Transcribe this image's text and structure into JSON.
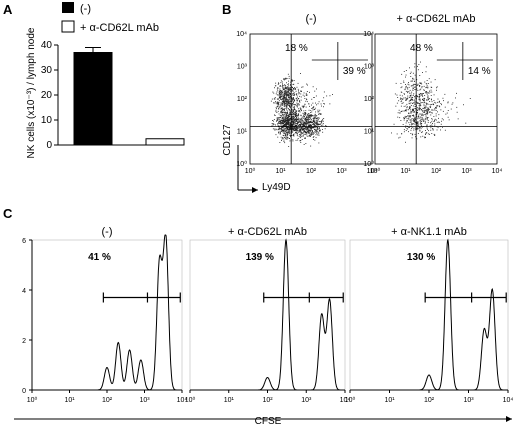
{
  "panels": {
    "A": "A",
    "B": "B",
    "C": "C"
  },
  "chart_data": [
    {
      "panel": "A",
      "type": "bar",
      "legend": [
        "(-)",
        "+ α-CD62L mAb"
      ],
      "legend_placement": "top",
      "ylabel": "NK cells (x10⁻³) / lymph node",
      "ylim": [
        0,
        40
      ],
      "yticks": [
        "0",
        "10",
        "20",
        "30",
        "40"
      ],
      "categories": [
        "(-)",
        "+ α-CD62L mAb"
      ],
      "values": [
        37,
        2.5
      ],
      "error": [
        2,
        0
      ],
      "colors": [
        "#000000",
        "#ffffff"
      ]
    },
    {
      "panel": "B",
      "type": "scatter",
      "xlabel": "Ly49D",
      "ylabel": "CD127",
      "scale": "log",
      "xlim": [
        1,
        10000
      ],
      "ylim": [
        1,
        10000
      ],
      "ticks": [
        "10⁰",
        "10¹",
        "10²",
        "10³",
        "10⁴"
      ],
      "plots": [
        {
          "title": "(-)",
          "quadrants": {
            "upper_left": "18 %",
            "upper_right": "39 %"
          }
        },
        {
          "title": "+ α-CD62L mAb",
          "quadrants": {
            "upper_left": "48 %",
            "upper_right": "14 %"
          }
        }
      ]
    },
    {
      "panel": "C",
      "type": "line",
      "xlabel": "CFSE",
      "scale_x": "log",
      "xlim": [
        1,
        10000
      ],
      "ylim": [
        0,
        6
      ],
      "yticks": [
        "0",
        "2",
        "4",
        "6"
      ],
      "xticks": [
        "10⁰",
        "10¹",
        "10²",
        "10³",
        "10⁴"
      ],
      "plots": [
        {
          "title": "(-)",
          "gate_label": "41 %",
          "gate": [
            80,
            9000
          ],
          "gate_split": 1200,
          "peaks": [
            {
              "x": 100,
              "h": 0.9
            },
            {
              "x": 200,
              "h": 1.9
            },
            {
              "x": 400,
              "h": 1.6
            },
            {
              "x": 800,
              "h": 1.2
            },
            {
              "x": 2500,
              "h": 5.0
            },
            {
              "x": 3700,
              "h": 6.0
            }
          ]
        },
        {
          "title": "+ α-CD62L mAb",
          "gate_label": "139 %",
          "gate": [
            80,
            9000
          ],
          "gate_split": 1200,
          "peaks": [
            {
              "x": 100,
              "h": 0.5
            },
            {
              "x": 300,
              "h": 6.0
            },
            {
              "x": 2500,
              "h": 3.0
            },
            {
              "x": 4000,
              "h": 3.6
            }
          ]
        },
        {
          "title": "+ α-NK1.1 mAb",
          "gate_label": "130 %",
          "gate": [
            80,
            9000
          ],
          "gate_split": 1200,
          "peaks": [
            {
              "x": 100,
              "h": 0.6
            },
            {
              "x": 300,
              "h": 6.0
            },
            {
              "x": 2500,
              "h": 2.4
            },
            {
              "x": 4000,
              "h": 4.0
            }
          ]
        }
      ]
    }
  ]
}
